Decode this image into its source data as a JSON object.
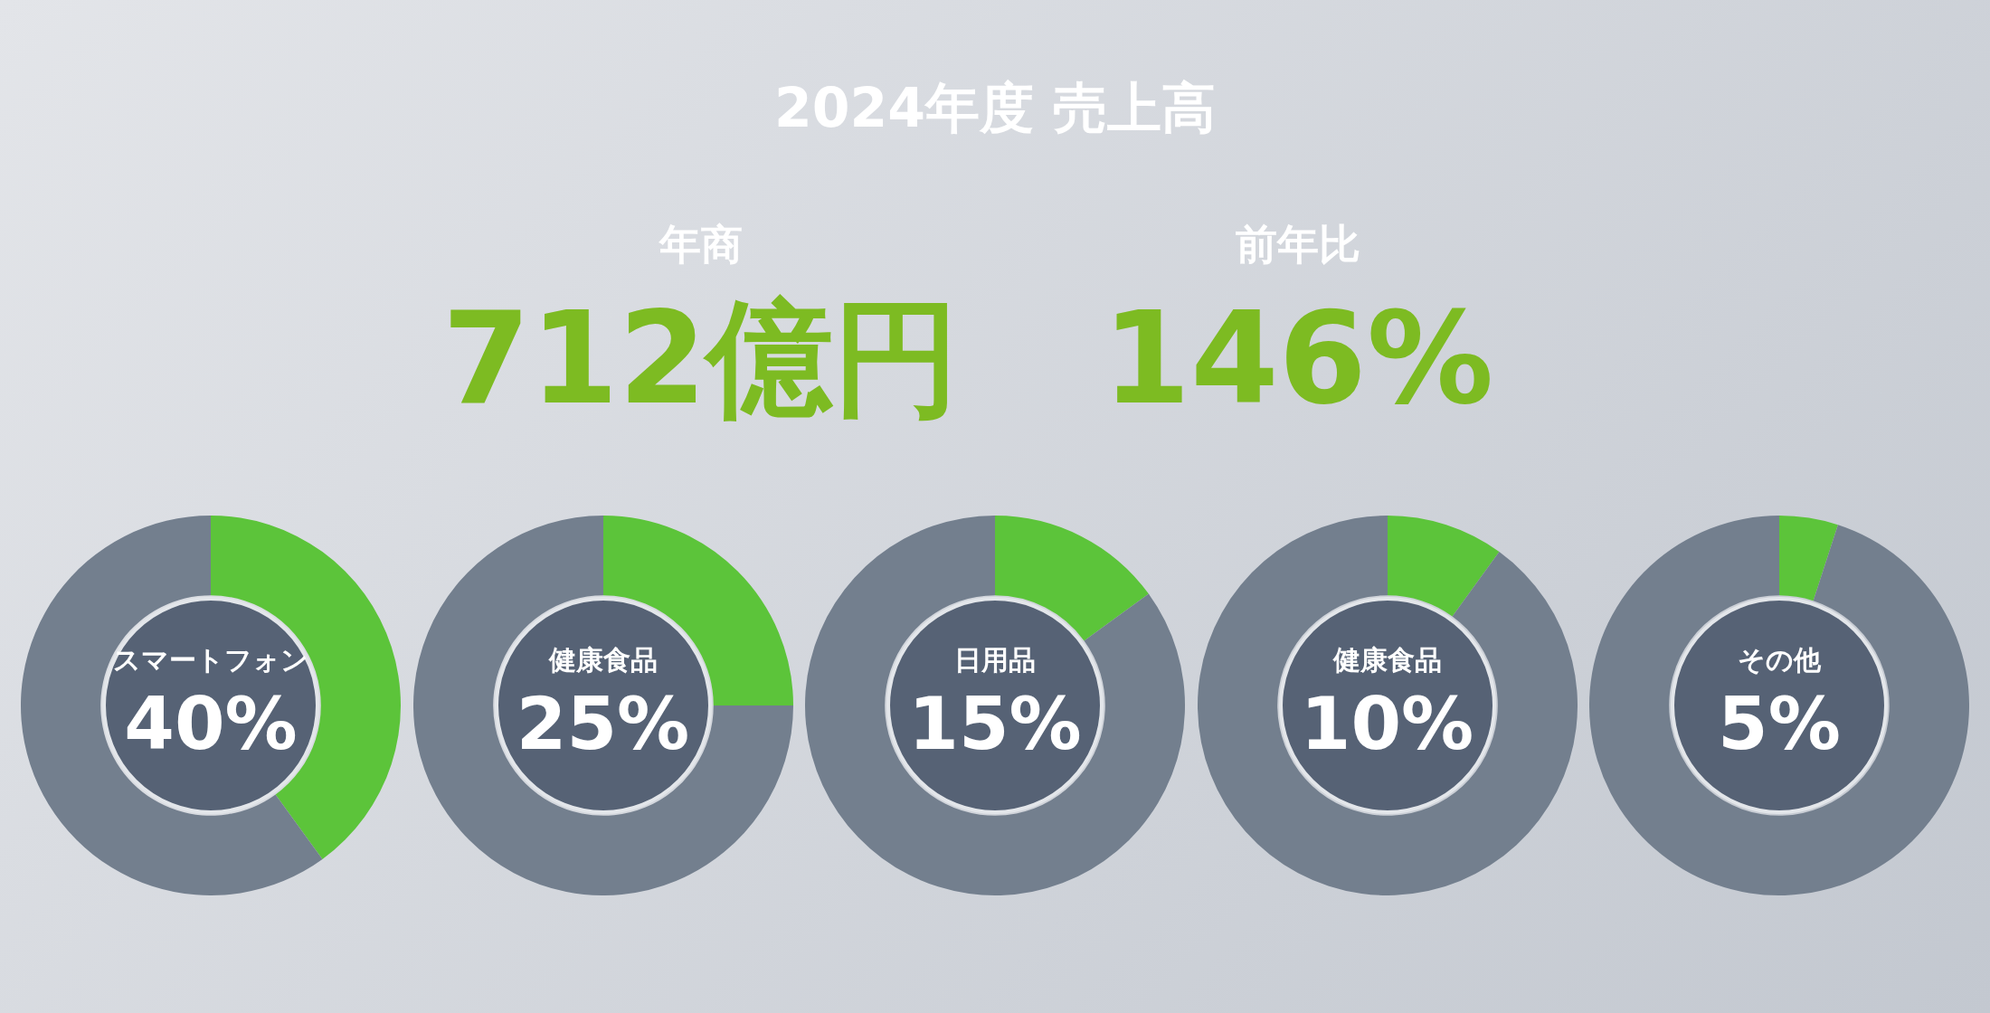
{
  "chart_data": [
    {
      "type": "other",
      "title": "2024年度 売上高",
      "annotations": [
        "年商",
        "712億円",
        "前年比",
        "146%"
      ]
    },
    {
      "type": "donut",
      "categories": [
        "スマートフォン",
        null
      ],
      "values": [
        40,
        60
      ],
      "colors": [
        "#5cc43a",
        "#737f8e"
      ],
      "value_labels": [
        "40%",
        null
      ]
    },
    {
      "type": "donut",
      "categories": [
        "健康食品",
        null
      ],
      "values": [
        25,
        75
      ],
      "colors": [
        "#5cc43a",
        "#737f8e"
      ],
      "value_labels": [
        "25%",
        null
      ]
    },
    {
      "type": "donut",
      "categories": [
        "日用品",
        null
      ],
      "values": [
        15,
        85
      ],
      "colors": [
        "#5cc43a",
        "#737f8e"
      ],
      "value_labels": [
        "15%",
        null
      ]
    },
    {
      "type": "donut",
      "categories": [
        "健康食品",
        null
      ],
      "values": [
        10,
        90
      ],
      "colors": [
        "#5cc43a",
        "#737f8e"
      ],
      "value_labels": [
        "10%",
        null
      ]
    },
    {
      "type": "donut",
      "categories": [
        "その他",
        null
      ],
      "values": [
        5,
        95
      ],
      "colors": [
        "#5cc43a",
        "#737f8e"
      ],
      "value_labels": [
        "5%",
        null
      ]
    }
  ]
}
